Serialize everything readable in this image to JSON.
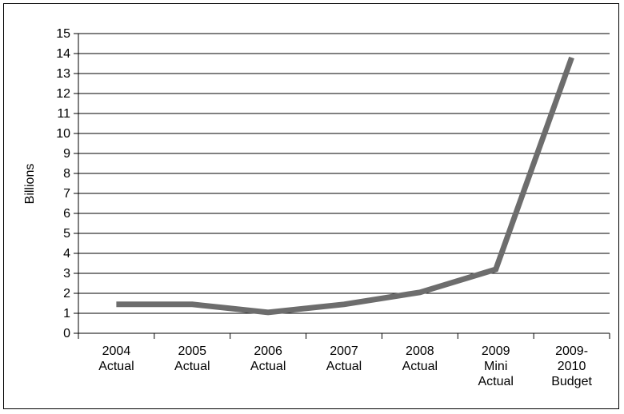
{
  "chart_data": {
    "type": "line",
    "categories": [
      [
        "2004",
        "Actual"
      ],
      [
        "2005",
        "Actual"
      ],
      [
        "2006",
        "Actual"
      ],
      [
        "2007",
        "Actual"
      ],
      [
        "2008",
        "Actual"
      ],
      [
        "2009",
        "Mini",
        "Actual"
      ],
      [
        "2009-",
        "2010",
        "Budget"
      ]
    ],
    "series": [
      {
        "values": [
          1.45,
          1.45,
          1.05,
          1.45,
          2.05,
          3.2,
          13.8
        ]
      }
    ],
    "title": "",
    "xlabel": "",
    "ylabel": "Billions",
    "ylim": [
      0,
      15
    ],
    "yticks": [
      0,
      1,
      2,
      3,
      4,
      5,
      6,
      7,
      8,
      9,
      10,
      11,
      12,
      13,
      14,
      15
    ],
    "grid": true,
    "legend": "none",
    "colors": {
      "line": "#6d6d6d",
      "grid": "#000000",
      "axis": "#000000",
      "text": "#000000"
    }
  }
}
